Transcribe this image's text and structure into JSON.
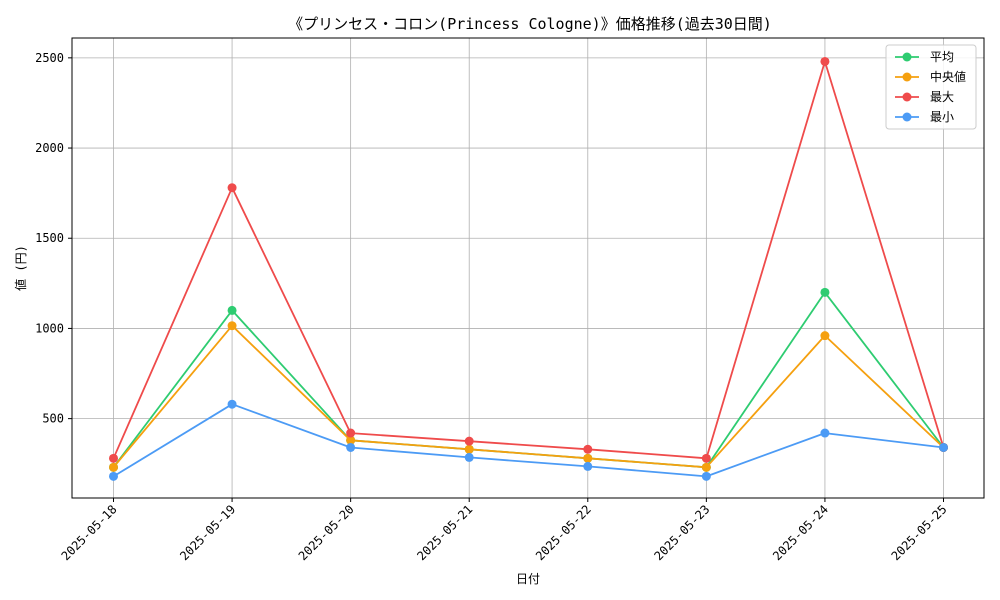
{
  "chart_data": {
    "type": "line",
    "title": "《プリンセス・コロン(Princess Cologne)》価格推移(過去30日間)",
    "xlabel": "日付",
    "ylabel": "値 (円)",
    "categories": [
      "2025-05-18",
      "2025-05-19",
      "2025-05-20",
      "2025-05-21",
      "2025-05-22",
      "2025-05-23",
      "2025-05-24",
      "2025-05-25"
    ],
    "ylim": [
      60,
      2610
    ],
    "yticks": [
      500,
      1000,
      1500,
      2000,
      2500
    ],
    "grid": true,
    "legend_position": "top-right",
    "series": [
      {
        "name": "平均",
        "color": "#2ecc71",
        "values": [
          230,
          1100,
          380,
          330,
          280,
          230,
          1200,
          340
        ]
      },
      {
        "name": "中央値",
        "color": "#f5a00f",
        "values": [
          230,
          1015,
          380,
          330,
          280,
          230,
          960,
          340
        ]
      },
      {
        "name": "最大",
        "color": "#ef4b4b",
        "values": [
          280,
          1780,
          420,
          375,
          330,
          280,
          2480,
          340
        ]
      },
      {
        "name": "最小",
        "color": "#4c9bf5",
        "values": [
          180,
          580,
          340,
          285,
          235,
          180,
          420,
          340
        ]
      }
    ]
  }
}
